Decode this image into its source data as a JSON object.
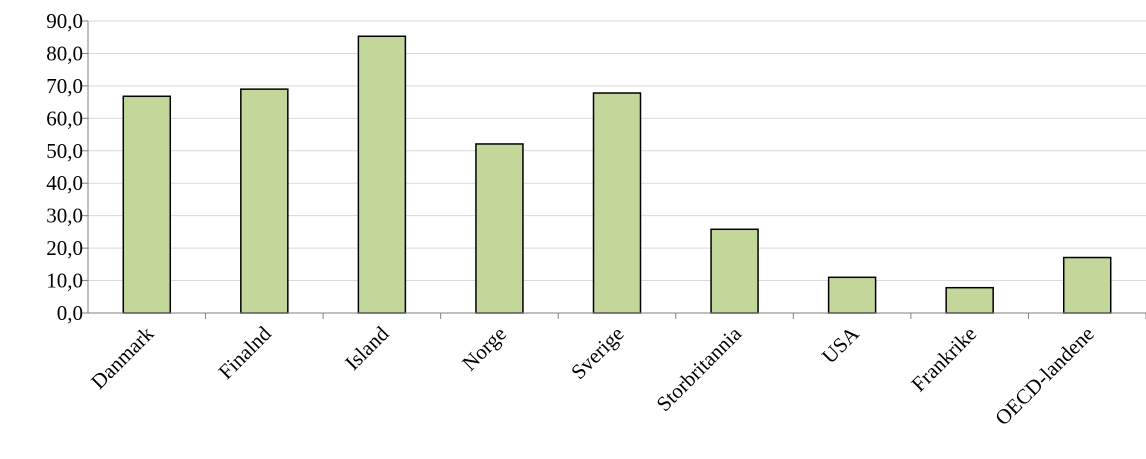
{
  "chart_data": {
    "type": "bar",
    "title": "",
    "xlabel": "",
    "ylabel": "",
    "categories": [
      "Danmark",
      "Finalnd",
      "Island",
      "Norge",
      "Sverige",
      "Storbritannia",
      "USA",
      "Frankrike",
      "OECD-landene"
    ],
    "values": [
      66.8,
      69.0,
      85.3,
      52.1,
      67.8,
      25.8,
      11.0,
      7.8,
      17.1
    ],
    "ylim": [
      0,
      90
    ],
    "yticks": [
      "0,0",
      "10,0",
      "20,0",
      "30,0",
      "40,0",
      "50,0",
      "60,0",
      "70,0",
      "80,0",
      "90,0"
    ],
    "grid": true,
    "bar_color": "#c4d79b",
    "bar_edge_color": "#000000",
    "grid_color": "#d9d9d9",
    "axis_color": "#808080"
  }
}
